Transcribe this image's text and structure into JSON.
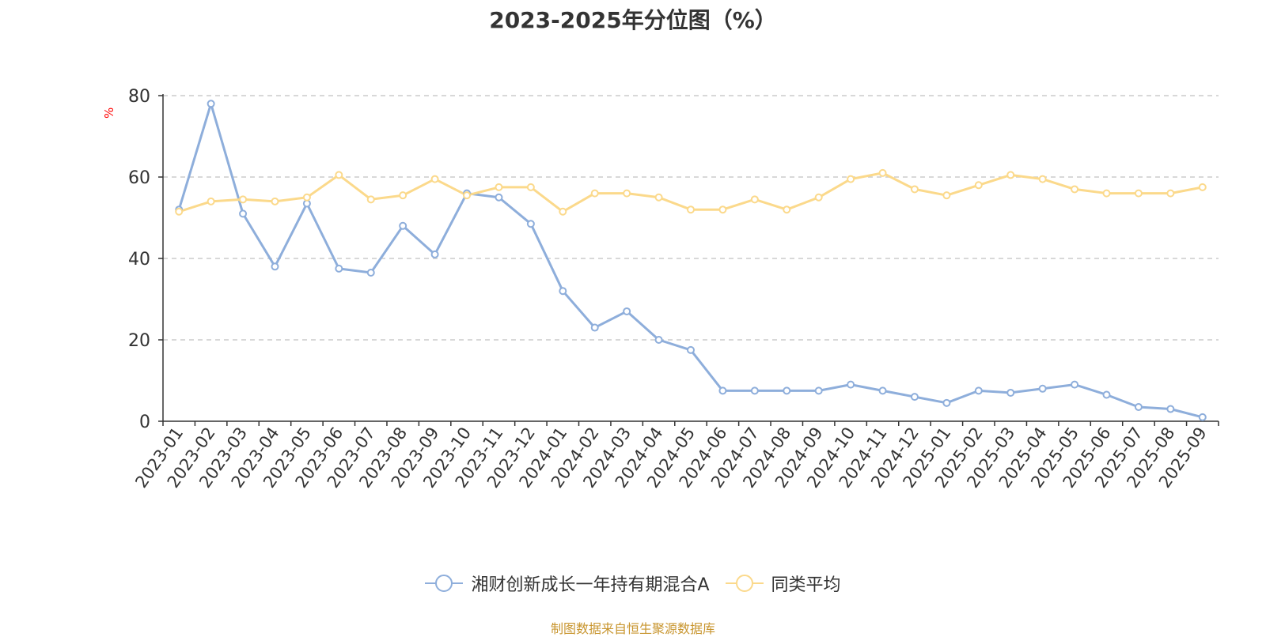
{
  "chart_data": {
    "type": "line",
    "title": "2023-2025年分位图（%）",
    "ylabel": "%",
    "xlabel": "",
    "ylim": [
      0,
      80
    ],
    "yticks": [
      0,
      20,
      40,
      60,
      80
    ],
    "grid": true,
    "legend_position": "bottom",
    "categories": [
      "2023-01",
      "2023-02",
      "2023-03",
      "2023-04",
      "2023-05",
      "2023-06",
      "2023-07",
      "2023-08",
      "2023-09",
      "2023-10",
      "2023-11",
      "2023-12",
      "2024-01",
      "2024-02",
      "2024-03",
      "2024-04",
      "2024-05",
      "2024-06",
      "2024-07",
      "2024-08",
      "2024-09",
      "2024-10",
      "2024-11",
      "2024-12",
      "2025-01",
      "2025-02",
      "2025-03",
      "2025-04",
      "2025-05",
      "2025-06",
      "2025-07",
      "2025-08",
      "2025-09"
    ],
    "series": [
      {
        "name": "湘财创新成长一年持有期混合A",
        "color": "#8eaedb",
        "values": [
          52,
          78,
          51,
          38,
          53.5,
          37.5,
          36.5,
          48,
          41,
          56,
          55,
          48.5,
          32,
          23,
          27,
          20,
          17.5,
          7.5,
          7.5,
          7.5,
          7.5,
          9,
          7.5,
          6,
          4.5,
          7.5,
          7,
          8,
          9,
          6.5,
          3.5,
          3,
          1
        ]
      },
      {
        "name": "同类平均",
        "color": "#fbd98b",
        "values": [
          51.5,
          54,
          54.5,
          54,
          55,
          60.5,
          54.5,
          55.5,
          59.5,
          55.5,
          57.5,
          57.5,
          51.5,
          56,
          56,
          55,
          52,
          52,
          54.5,
          52,
          55,
          59.5,
          61,
          57,
          55.5,
          58,
          60.5,
          59.5,
          57,
          56,
          56,
          56,
          57.5
        ]
      }
    ]
  },
  "footer": {
    "source": "制图数据来自恒生聚源数据库"
  }
}
